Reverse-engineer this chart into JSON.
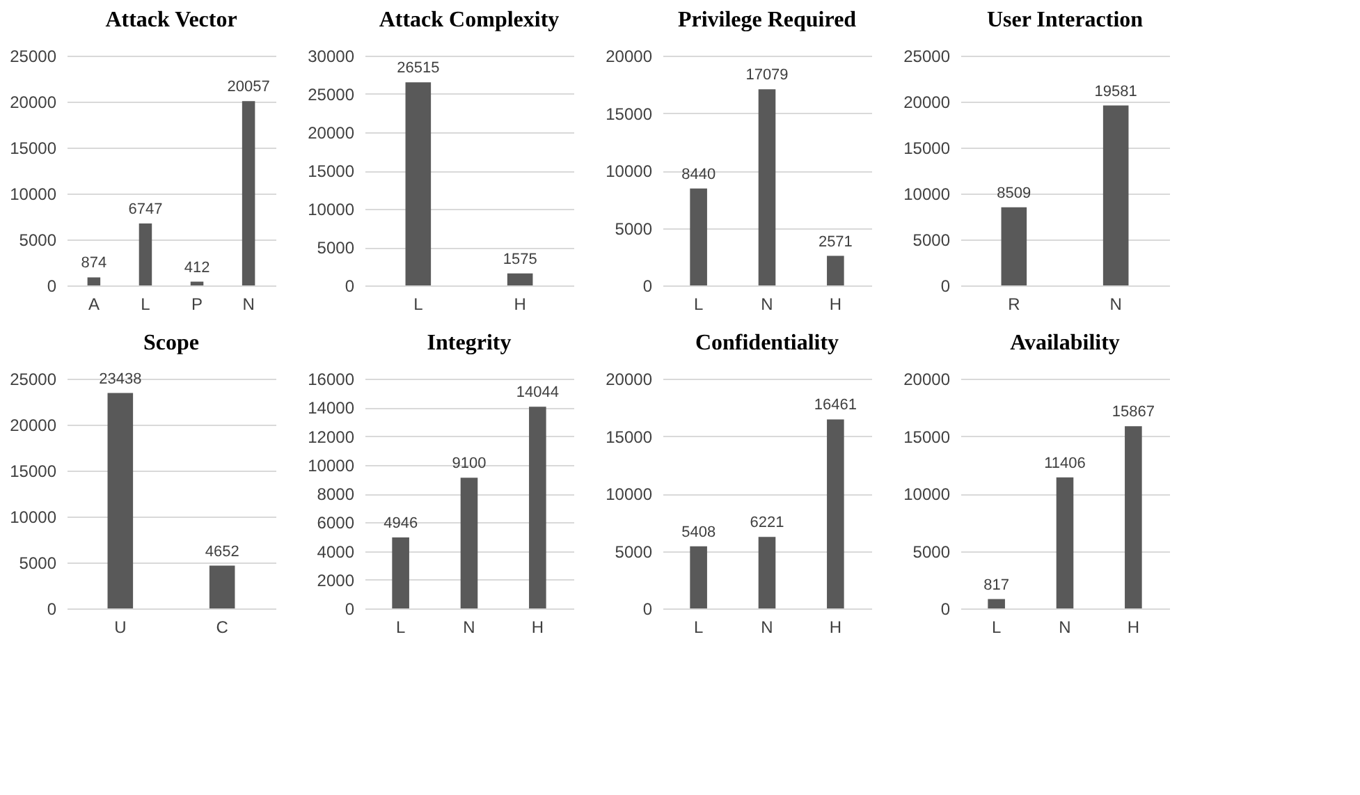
{
  "chart_data": [
    {
      "type": "bar",
      "title": "Attack Vector",
      "categories": [
        "A",
        "L",
        "P",
        "N"
      ],
      "values": [
        874,
        6747,
        412,
        20057
      ],
      "color": "#595959",
      "ylim": [
        0,
        25000
      ],
      "yticks": [
        0,
        5000,
        10000,
        15000,
        20000,
        25000
      ],
      "grid": "y",
      "data_labels": true
    },
    {
      "type": "bar",
      "title": "Attack Complexity",
      "categories": [
        "L",
        "H"
      ],
      "values": [
        26515,
        1575
      ],
      "color": "#595959",
      "ylim": [
        0,
        30000
      ],
      "yticks": [
        0,
        5000,
        10000,
        15000,
        20000,
        25000,
        30000
      ],
      "grid": "y",
      "data_labels": true
    },
    {
      "type": "bar",
      "title": "Privilege Required",
      "categories": [
        "L",
        "N",
        "H"
      ],
      "values": [
        8440,
        17079,
        2571
      ],
      "color": "#595959",
      "ylim": [
        0,
        20000
      ],
      "yticks": [
        0,
        5000,
        10000,
        15000,
        20000
      ],
      "grid": "y",
      "data_labels": true
    },
    {
      "type": "bar",
      "title": "User Interaction",
      "categories": [
        "R",
        "N"
      ],
      "values": [
        8509,
        19581
      ],
      "color": "#595959",
      "ylim": [
        0,
        25000
      ],
      "yticks": [
        0,
        5000,
        10000,
        15000,
        20000,
        25000
      ],
      "grid": "y",
      "data_labels": true
    },
    {
      "type": "bar",
      "title": "Scope",
      "categories": [
        "U",
        "C"
      ],
      "values": [
        23438,
        4652
      ],
      "color": "#595959",
      "ylim": [
        0,
        25000
      ],
      "yticks": [
        0,
        5000,
        10000,
        15000,
        20000,
        25000
      ],
      "grid": "y",
      "data_labels": true
    },
    {
      "type": "bar",
      "title": "Integrity",
      "categories": [
        "L",
        "N",
        "H"
      ],
      "values": [
        4946,
        9100,
        14044
      ],
      "color": "#595959",
      "ylim": [
        0,
        16000
      ],
      "yticks": [
        0,
        2000,
        4000,
        6000,
        8000,
        10000,
        12000,
        14000,
        16000
      ],
      "grid": "y",
      "data_labels": true
    },
    {
      "type": "bar",
      "title": "Confidentiality",
      "categories": [
        "L",
        "N",
        "H"
      ],
      "values": [
        5408,
        6221,
        16461
      ],
      "color": "#595959",
      "ylim": [
        0,
        20000
      ],
      "yticks": [
        0,
        5000,
        10000,
        15000,
        20000
      ],
      "grid": "y",
      "data_labels": true
    },
    {
      "type": "bar",
      "title": "Availability",
      "categories": [
        "L",
        "N",
        "H"
      ],
      "values": [
        817,
        11406,
        15867
      ],
      "color": "#595959",
      "ylim": [
        0,
        20000
      ],
      "yticks": [
        0,
        5000,
        10000,
        15000,
        20000
      ],
      "grid": "y",
      "data_labels": true
    }
  ]
}
